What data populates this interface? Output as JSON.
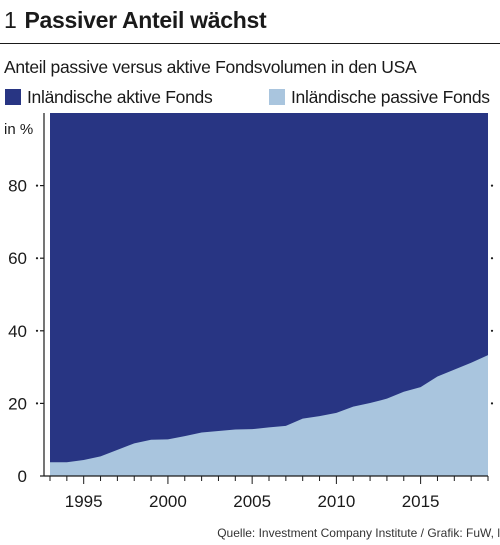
{
  "header": {
    "number": "1",
    "title": "Passiver Anteil wächst",
    "subtitle": "Anteil passive versus aktive Fondsvolumen in den USA"
  },
  "source": "Quelle: Investment Company Institute / Grafik: FuW, ls",
  "colors": {
    "active": "#283583",
    "passive": "#a9c5de",
    "text": "#1a1a1a"
  },
  "chart_data": {
    "type": "area",
    "stacked": true,
    "ylabel": "in %",
    "ylim": [
      0,
      100
    ],
    "yticks": [
      0,
      20,
      40,
      60,
      80
    ],
    "xlim": [
      1993,
      2019
    ],
    "xticks": [
      1995,
      2000,
      2005,
      2010,
      2015
    ],
    "legend_position": "top",
    "x": [
      1993,
      1994,
      1995,
      1996,
      1997,
      1998,
      1999,
      2000,
      2001,
      2002,
      2003,
      2004,
      2005,
      2006,
      2007,
      2008,
      2009,
      2010,
      2011,
      2012,
      2013,
      2014,
      2015,
      2016,
      2017,
      2018,
      2019
    ],
    "series": [
      {
        "name": "Inländische aktive Fonds",
        "color": "#283583",
        "values": [
          96.2,
          96.2,
          95.6,
          94.6,
          92.8,
          91,
          90,
          89.9,
          89,
          88,
          87.6,
          87.2,
          87.1,
          86.6,
          86.2,
          84.2,
          83.5,
          82.6,
          80.9,
          79.9,
          78.7,
          76.8,
          75.5,
          72.6,
          70.7,
          68.8,
          66.7
        ]
      },
      {
        "name": "Inländische passive Fonds",
        "color": "#a9c5de",
        "values": [
          3.8,
          3.8,
          4.4,
          5.4,
          7.2,
          9,
          10,
          10.1,
          11,
          12,
          12.4,
          12.8,
          12.9,
          13.4,
          13.8,
          15.8,
          16.5,
          17.4,
          19.1,
          20.1,
          21.3,
          23.2,
          24.5,
          27.4,
          29.3,
          31.2,
          33.3
        ]
      }
    ]
  }
}
